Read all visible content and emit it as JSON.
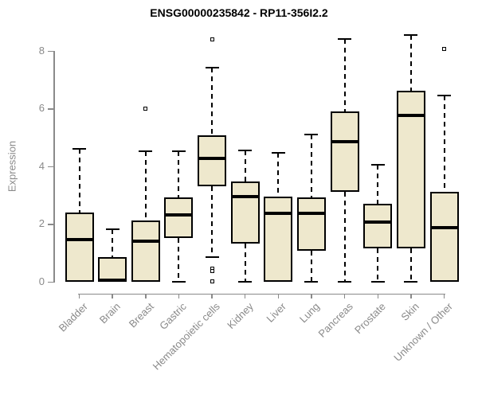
{
  "chart_data": {
    "type": "boxplot",
    "title": "ENSG00000235842 - RP11-356I2.2",
    "ylabel": "Expression",
    "xlabel": "",
    "ylim": [
      0,
      8.6
    ],
    "yticks": [
      0,
      2,
      4,
      6,
      8
    ],
    "grid": false,
    "legend": "none",
    "categories": [
      "Bladder",
      "Brain",
      "Breast",
      "Gastric",
      "Hematopoietic cells",
      "Kidney",
      "Liver",
      "Lung",
      "Pancreas",
      "Prostate",
      "Skin",
      "Unknown / Other"
    ],
    "series": [
      {
        "name": "Bladder",
        "whislo": 0,
        "q1": 0,
        "med": 1.45,
        "q3": 2.4,
        "whishi": 4.6,
        "outliers": []
      },
      {
        "name": "Brain",
        "whislo": 0,
        "q1": 0,
        "med": 0.05,
        "q3": 0.85,
        "whishi": 1.8,
        "outliers": []
      },
      {
        "name": "Breast",
        "whislo": 0,
        "q1": 0,
        "med": 1.4,
        "q3": 2.1,
        "whishi": 4.5,
        "outliers": [
          6.0
        ]
      },
      {
        "name": "Gastric",
        "whislo": 0,
        "q1": 1.5,
        "med": 2.3,
        "q3": 2.9,
        "whishi": 4.5,
        "outliers": []
      },
      {
        "name": "Hematopoietic cells",
        "whislo": 0.85,
        "q1": 3.3,
        "med": 4.25,
        "q3": 5.05,
        "whishi": 7.4,
        "outliers": [
          8.4,
          0.45,
          0.35,
          0.0
        ]
      },
      {
        "name": "Kidney",
        "whislo": 0,
        "q1": 1.3,
        "med": 2.95,
        "q3": 3.45,
        "whishi": 4.55,
        "outliers": []
      },
      {
        "name": "Liver",
        "whislo": 0,
        "q1": 0,
        "med": 2.35,
        "q3": 2.95,
        "whishi": 4.45,
        "outliers": []
      },
      {
        "name": "Lung",
        "whislo": 0,
        "q1": 1.05,
        "med": 2.35,
        "q3": 2.9,
        "whishi": 5.1,
        "outliers": []
      },
      {
        "name": "Pancreas",
        "whislo": 0,
        "q1": 3.1,
        "med": 4.85,
        "q3": 5.9,
        "whishi": 8.4,
        "outliers": []
      },
      {
        "name": "Prostate",
        "whislo": 0,
        "q1": 1.15,
        "med": 2.05,
        "q3": 2.7,
        "whishi": 4.05,
        "outliers": []
      },
      {
        "name": "Skin",
        "whislo": 0,
        "q1": 1.15,
        "med": 5.75,
        "q3": 6.6,
        "whishi": 8.55,
        "outliers": []
      },
      {
        "name": "Unknown / Other",
        "whislo": 0,
        "q1": 0,
        "med": 1.85,
        "q3": 3.1,
        "whishi": 6.45,
        "outliers": [
          8.05
        ]
      }
    ],
    "colors": {
      "box_fill": "#EEE8CD",
      "box_border": "#000000",
      "median": "#000000",
      "axis": "#8A8A8A",
      "title_color": "#000000"
    }
  }
}
